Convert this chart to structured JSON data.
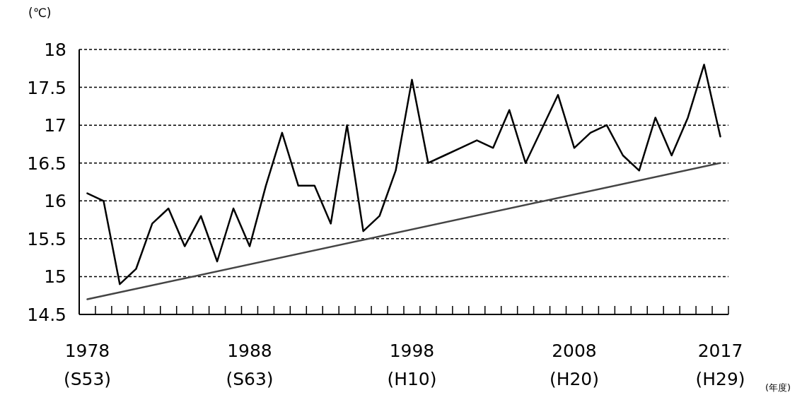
{
  "chart_data": {
    "type": "line",
    "ylabel": "(℃)",
    "xlabel": "(年度)",
    "categories": [
      "1978\n(S53)",
      null,
      null,
      null,
      null,
      null,
      null,
      null,
      null,
      null,
      "1988\n(S63)",
      null,
      null,
      null,
      null,
      null,
      null,
      null,
      null,
      null,
      "1998\n(H10)",
      null,
      null,
      null,
      null,
      null,
      null,
      null,
      null,
      null,
      "2008\n(H20)",
      null,
      null,
      null,
      null,
      null,
      null,
      null,
      null,
      "2017\n(H29)"
    ],
    "ylim": [
      14.5,
      18
    ],
    "yticks": [
      14.5,
      15,
      15.5,
      16,
      16.5,
      17,
      17.5,
      18
    ],
    "grid": "y",
    "line_style": "solid",
    "series": [
      {
        "color": "#000000",
        "values": [
          16.1,
          16.0,
          14.9,
          15.1,
          15.7,
          15.9,
          15.4,
          15.8,
          15.2,
          15.9,
          15.4,
          16.2,
          16.9,
          16.2,
          16.2,
          15.7,
          17.0,
          15.6,
          15.8,
          16.4,
          17.6,
          16.5,
          16.6,
          16.7,
          16.8,
          16.7,
          17.2,
          16.5,
          16.95,
          17.4,
          16.7,
          16.9,
          17.0,
          16.6,
          16.4,
          17.1,
          16.6,
          17.1,
          17.8,
          16.85
        ]
      },
      {
        "type": "line",
        "color": "#444444",
        "x": [
          "1978\n(S53)",
          "2017\n(H29)"
        ],
        "values": [
          14.7,
          16.5
        ]
      }
    ]
  }
}
